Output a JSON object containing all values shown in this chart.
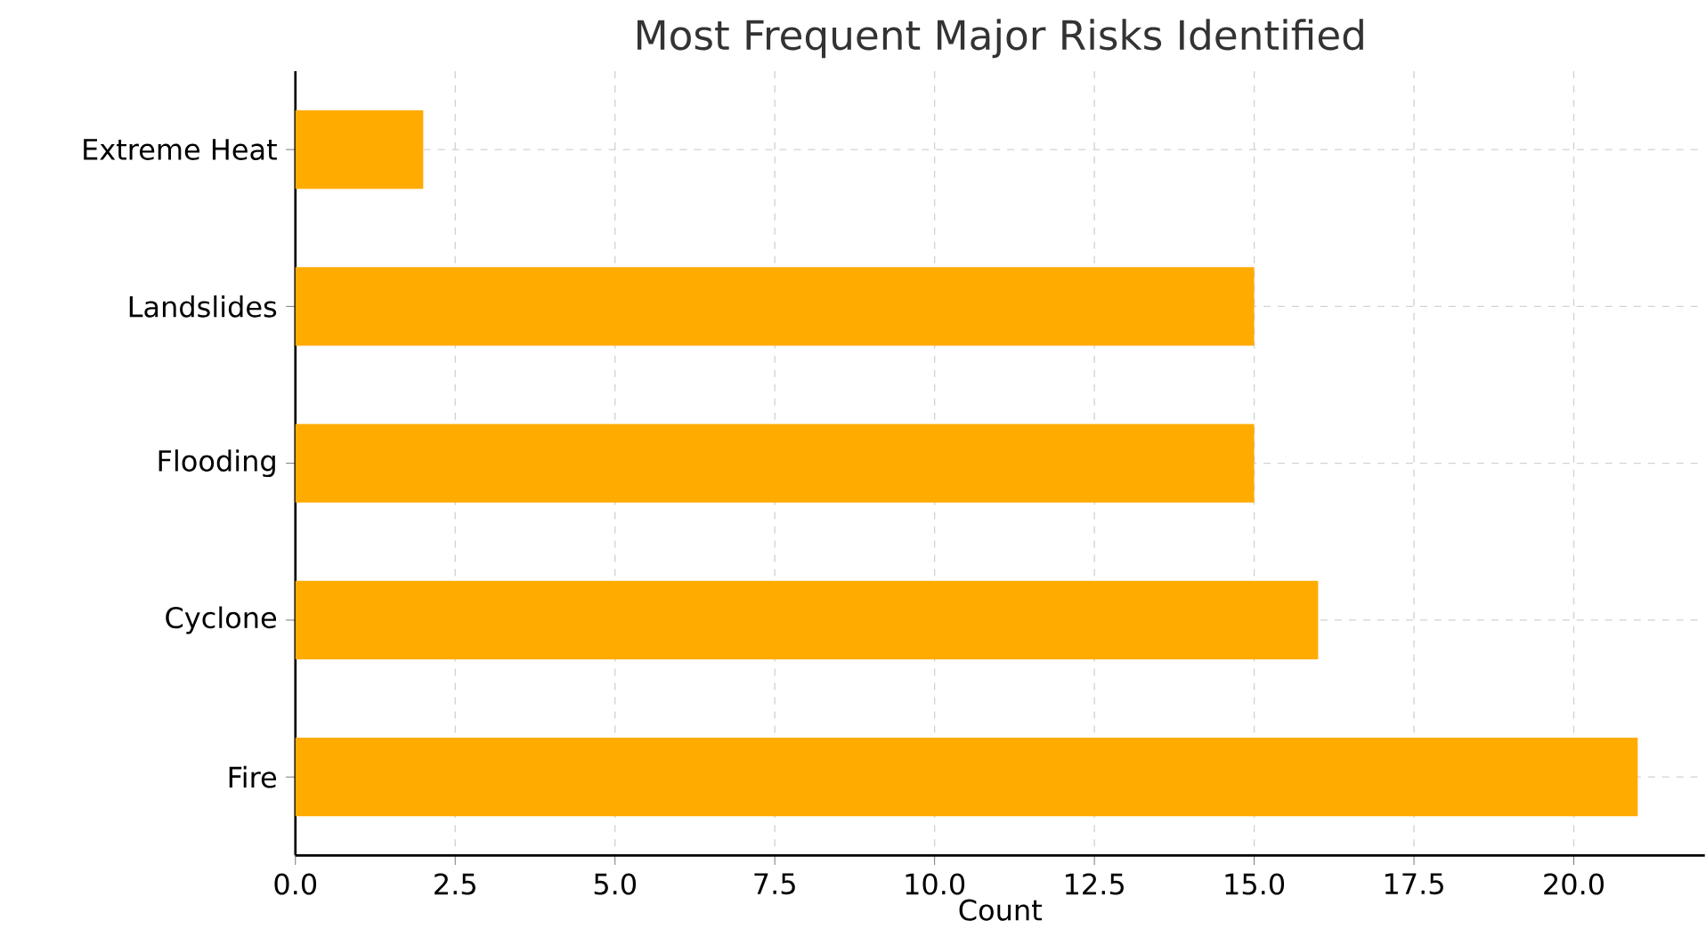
{
  "chart_data": {
    "type": "bar",
    "orientation": "horizontal",
    "title": "Most Frequent Major Risks Identified",
    "xlabel": "Count",
    "categories": [
      "Extreme Heat",
      "Landslides",
      "Flooding",
      "Cyclone",
      "Fire"
    ],
    "values": [
      2,
      15,
      15,
      16,
      21
    ],
    "color": "#ffab00",
    "xlim": [
      0,
      22.05
    ],
    "xticks": [
      {
        "value": 0,
        "label": "0.0"
      },
      {
        "value": 2.5,
        "label": "2.5"
      },
      {
        "value": 5,
        "label": "5.0"
      },
      {
        "value": 7.5,
        "label": "7.5"
      },
      {
        "value": 10,
        "label": "10.0"
      },
      {
        "value": 12.5,
        "label": "12.5"
      },
      {
        "value": 15,
        "label": "15.0"
      },
      {
        "value": 17.5,
        "label": "17.5"
      },
      {
        "value": 20,
        "label": "20.0"
      }
    ],
    "grid": true
  }
}
